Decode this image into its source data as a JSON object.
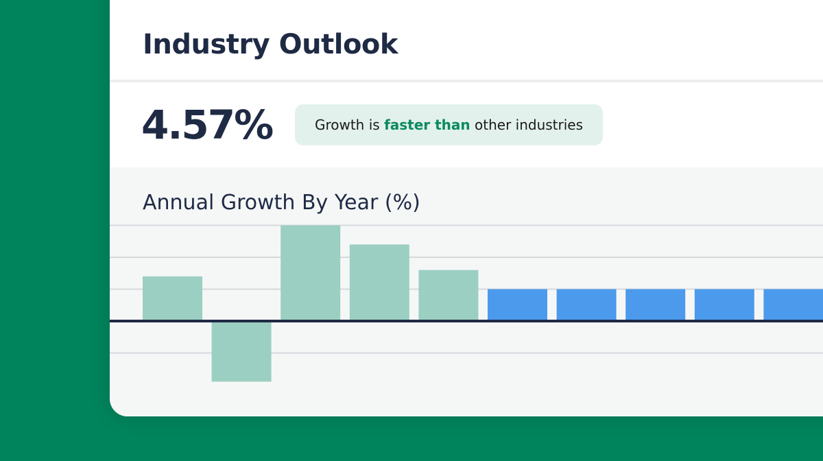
{
  "header": {
    "title": "Industry Outlook"
  },
  "stat": {
    "value": "4.57%"
  },
  "badge": {
    "prefix": "Growth is ",
    "highlight": "faster than",
    "suffix": " other industries"
  },
  "colors": {
    "background": "#00845c",
    "historical": "#9bcfc1",
    "projected": "#4c9aec",
    "highlight_text": "#0a8a5f",
    "axis": "#1f2a44"
  },
  "chart_data": {
    "type": "bar",
    "title": "Annual Growth By Year (%)",
    "xlabel": "",
    "ylabel": "",
    "ylim": [
      -2,
      3
    ],
    "grid": true,
    "series": [
      {
        "values": [
          1.4,
          -1.9,
          3.0,
          2.4,
          1.6,
          null,
          null,
          null,
          null,
          null
        ],
        "color": "#9bcfc1"
      },
      {
        "values": [
          null,
          null,
          null,
          null,
          null,
          1.0,
          1.0,
          1.0,
          1.0,
          1.0
        ],
        "color": "#4c9aec"
      }
    ]
  }
}
